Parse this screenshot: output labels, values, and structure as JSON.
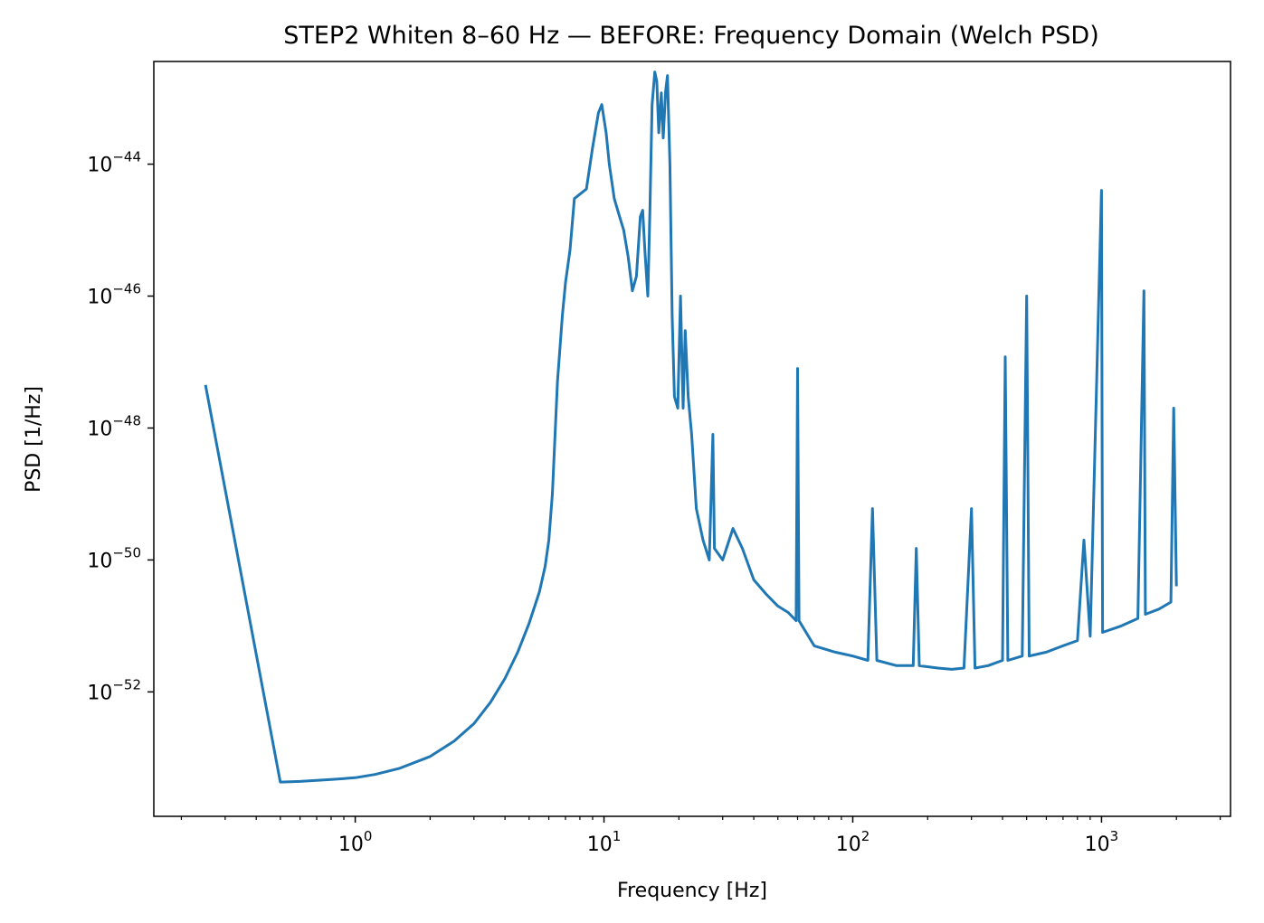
{
  "chart_data": {
    "type": "line",
    "title": "STEP2 Whiten 8–60 Hz — BEFORE: Frequency Domain (Welch PSD)",
    "xlabel": "Frequency [Hz]",
    "ylabel": "PSD [1/Hz]",
    "xscale": "log",
    "yscale": "log",
    "xlim": [
      0.155,
      3300
    ],
    "ylim": [
      1.3e-54,
      3.6e-43
    ],
    "grid": false,
    "legend": "none",
    "line_color": "#1f77b4",
    "x_ticks": [
      {
        "value": 1,
        "base": "10",
        "exp": "0"
      },
      {
        "value": 10,
        "base": "10",
        "exp": "1"
      },
      {
        "value": 100,
        "base": "10",
        "exp": "2"
      },
      {
        "value": 1000,
        "base": "10",
        "exp": "3"
      }
    ],
    "y_ticks": [
      {
        "value": 1e-52,
        "base": "10",
        "exp": "−52"
      },
      {
        "value": 1e-50,
        "base": "10",
        "exp": "−50"
      },
      {
        "value": 1e-48,
        "base": "10",
        "exp": "−48"
      },
      {
        "value": 1e-46,
        "base": "10",
        "exp": "−46"
      },
      {
        "value": 1e-44,
        "base": "10",
        "exp": "−44"
      }
    ],
    "series": [
      {
        "values": [
          [
            0.25,
            4.5e-48
          ],
          [
            0.5,
            4.3e-54
          ],
          [
            0.6,
            4.4e-54
          ],
          [
            0.8,
            4.7e-54
          ],
          [
            1.0,
            5e-54
          ],
          [
            1.2,
            5.6e-54
          ],
          [
            1.5,
            6.9e-54
          ],
          [
            2.0,
            1.05e-53
          ],
          [
            2.5,
            1.8e-53
          ],
          [
            3.0,
            3.3e-53
          ],
          [
            3.5,
            7e-53
          ],
          [
            4.0,
            1.6e-52
          ],
          [
            4.5,
            4e-52
          ],
          [
            5.0,
            1.1e-51
          ],
          [
            5.5,
            3.3e-51
          ],
          [
            5.8,
            8e-51
          ],
          [
            6.0,
            2e-50
          ],
          [
            6.2,
            1e-49
          ],
          [
            6.5,
            5e-48
          ],
          [
            6.8,
            5e-47
          ],
          [
            7.0,
            1.6e-46
          ],
          [
            7.3,
            5e-46
          ],
          [
            7.6,
            3e-45
          ],
          [
            8.0,
            3.5e-45
          ],
          [
            8.5,
            4.2e-45
          ],
          [
            9.0,
            1.8e-44
          ],
          [
            9.5,
            6e-44
          ],
          [
            9.8,
            8e-44
          ],
          [
            10.2,
            3e-44
          ],
          [
            10.5,
            1e-44
          ],
          [
            11.0,
            3e-45
          ],
          [
            11.5,
            1.7e-45
          ],
          [
            12.0,
            1e-45
          ],
          [
            12.5,
            4e-46
          ],
          [
            13.0,
            1.2e-46
          ],
          [
            13.5,
            2e-46
          ],
          [
            14.0,
            1.6e-45
          ],
          [
            14.3,
            2e-45
          ],
          [
            14.6,
            5e-46
          ],
          [
            15.0,
            1e-46
          ],
          [
            15.3,
            2e-45
          ],
          [
            15.6,
            8e-44
          ],
          [
            16.0,
            2.5e-43
          ],
          [
            16.3,
            1.8e-43
          ],
          [
            16.6,
            3e-44
          ],
          [
            17.0,
            1.2e-43
          ],
          [
            17.3,
            2.5e-44
          ],
          [
            17.7,
            1.3e-43
          ],
          [
            18.0,
            2.2e-43
          ],
          [
            18.4,
            1e-44
          ],
          [
            18.8,
            5e-47
          ],
          [
            19.2,
            3e-48
          ],
          [
            19.8,
            2e-48
          ],
          [
            20.3,
            1e-46
          ],
          [
            20.8,
            2e-48
          ],
          [
            21.2,
            3e-47
          ],
          [
            21.8,
            3e-48
          ],
          [
            22.5,
            8e-49
          ],
          [
            23.5,
            6e-50
          ],
          [
            25.0,
            2e-50
          ],
          [
            26.5,
            1e-50
          ],
          [
            27.4,
            8e-49
          ],
          [
            27.8,
            1.5e-50
          ],
          [
            30.0,
            1e-50
          ],
          [
            33.0,
            3e-50
          ],
          [
            36.0,
            1.5e-50
          ],
          [
            40.0,
            5e-51
          ],
          [
            45.0,
            3e-51
          ],
          [
            50.0,
            2e-51
          ],
          [
            55.0,
            1.6e-51
          ],
          [
            59.2,
            1.2e-51
          ],
          [
            60.0,
            8e-48
          ],
          [
            60.8,
            1.2e-51
          ],
          [
            70.0,
            5e-52
          ],
          [
            85.0,
            4e-52
          ],
          [
            100.0,
            3.5e-52
          ],
          [
            115.0,
            3e-52
          ],
          [
            120.0,
            6e-50
          ],
          [
            125.0,
            3e-52
          ],
          [
            150.0,
            2.5e-52
          ],
          [
            175.0,
            2.5e-52
          ],
          [
            180.0,
            1.5e-50
          ],
          [
            185.0,
            2.5e-52
          ],
          [
            220.0,
            2.3e-52
          ],
          [
            250.0,
            2.2e-52
          ],
          [
            280.0,
            2.3e-52
          ],
          [
            300.0,
            6e-50
          ],
          [
            310.0,
            2.3e-52
          ],
          [
            350.0,
            2.5e-52
          ],
          [
            400.0,
            3e-52
          ],
          [
            410.0,
            1.2e-47
          ],
          [
            420.0,
            3e-52
          ],
          [
            480.0,
            3.5e-52
          ],
          [
            500.0,
            1e-46
          ],
          [
            512.0,
            3.5e-52
          ],
          [
            600.0,
            4e-52
          ],
          [
            700.0,
            5e-52
          ],
          [
            800.0,
            6e-52
          ],
          [
            850.0,
            2e-50
          ],
          [
            900.0,
            7e-52
          ],
          [
            1000.0,
            4e-45
          ],
          [
            1010.0,
            8e-52
          ],
          [
            1200.0,
            1e-51
          ],
          [
            1400.0,
            1.3e-51
          ],
          [
            1480.0,
            1.2e-46
          ],
          [
            1500.0,
            1.5e-51
          ],
          [
            1700.0,
            1.8e-51
          ],
          [
            1900.0,
            2.3e-51
          ],
          [
            1950.0,
            2e-48
          ],
          [
            2000.0,
            4e-51
          ]
        ]
      }
    ]
  }
}
